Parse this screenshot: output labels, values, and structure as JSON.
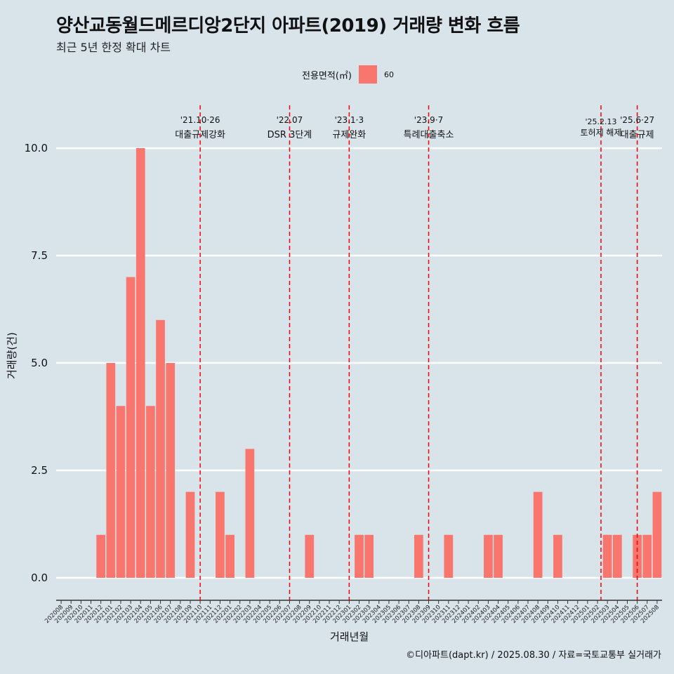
{
  "header": {
    "title": "양산교동월드메르디앙2단지 아파트(2019) 거래량 변화 흐름",
    "subtitle": "최근 5년 한정 확대 차트"
  },
  "legend": {
    "title": "전용면적(㎡)",
    "label": "60",
    "color": "#f8766d"
  },
  "caption": "©디아파트(dapt.kr) / 2025.08.30 / 자료=국토교통부 실거래가",
  "chart_data": {
    "type": "bar",
    "xlabel": "거래년월",
    "ylabel": "거래량(건)",
    "ylim": [
      0,
      10.5
    ],
    "yticks": [
      "0.0",
      "2.5",
      "5.0",
      "7.5",
      "10.0"
    ],
    "grid": true,
    "legend_position": "top",
    "categories": [
      "202008",
      "202009",
      "202010",
      "202011",
      "202012",
      "202101",
      "202102",
      "202103",
      "202104",
      "202105",
      "202106",
      "202107",
      "202108",
      "202109",
      "202110",
      "202111",
      "202112",
      "202201",
      "202202",
      "202203",
      "202204",
      "202205",
      "202206",
      "202207",
      "202208",
      "202209",
      "202210",
      "202211",
      "202212",
      "202301",
      "202302",
      "202303",
      "202304",
      "202305",
      "202306",
      "202307",
      "202308",
      "202309",
      "202310",
      "202311",
      "202312",
      "202401",
      "202402",
      "202403",
      "202404",
      "202405",
      "202406",
      "202407",
      "202408",
      "202409",
      "202410",
      "202411",
      "202412",
      "202501",
      "202502",
      "202503",
      "202504",
      "202505",
      "202506",
      "202507",
      "202508"
    ],
    "series": [
      {
        "name": "60",
        "color": "#f8766d",
        "values": [
          0,
          0,
          0,
          0,
          1,
          5,
          4,
          7,
          10,
          4,
          6,
          5,
          0,
          2,
          0,
          0,
          2,
          1,
          0,
          3,
          0,
          0,
          0,
          0,
          0,
          1,
          0,
          0,
          0,
          0,
          1,
          1,
          0,
          0,
          0,
          0,
          1,
          0,
          0,
          1,
          0,
          0,
          0,
          1,
          1,
          0,
          0,
          0,
          2,
          0,
          1,
          0,
          0,
          0,
          0,
          1,
          1,
          0,
          1,
          1,
          2
        ]
      }
    ],
    "annotations": [
      {
        "date": "'21.10·26",
        "text": "대출규제강화",
        "at": "202110"
      },
      {
        "date": "'22.07",
        "text": "DSR 3단계",
        "at": "202207"
      },
      {
        "date": "'23.1·3",
        "text": "규제완화",
        "at": "202301"
      },
      {
        "date": "'23.9·7",
        "text": "특례대출축소",
        "at": "202309"
      },
      {
        "date": "'25.2.13",
        "text": "토허제 해제",
        "at": "202502"
      },
      {
        "date": "'25.6·27",
        "text": "대출규제",
        "at": "202506"
      }
    ]
  }
}
